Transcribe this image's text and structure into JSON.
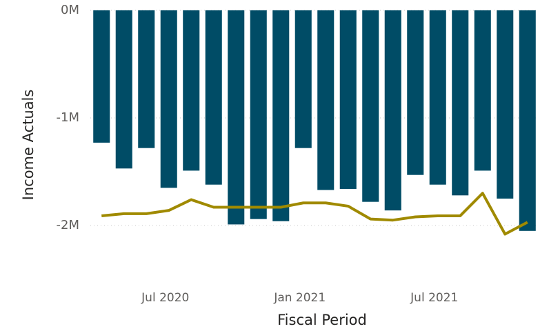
{
  "chart_data": {
    "type": "bar_line",
    "x_label": "Fiscal Period",
    "y_label": "Income Actuals",
    "categories": [
      null,
      null,
      null,
      "Jul 2020",
      null,
      null,
      null,
      null,
      null,
      "Jan 2021",
      null,
      null,
      null,
      null,
      null,
      "Jul 2021",
      null,
      null,
      null,
      null
    ],
    "series": [
      {
        "type": "bar",
        "color": "#004c66",
        "values": [
          -1230000,
          -1470000,
          -1280000,
          -1650000,
          -1490000,
          -1620000,
          -1990000,
          -1940000,
          -1960000,
          -1280000,
          -1670000,
          -1660000,
          -1780000,
          -1860000,
          -1530000,
          -1620000,
          -1720000,
          -1490000,
          -1750000,
          -2050000
        ]
      },
      {
        "type": "line",
        "color": "#a08a00",
        "values": [
          -1910000,
          -1890000,
          -1890000,
          -1860000,
          -1760000,
          -1830000,
          -1830000,
          -1830000,
          -1830000,
          -1790000,
          -1790000,
          -1820000,
          -1940000,
          -1950000,
          -1920000,
          -1910000,
          -1910000,
          -1700000,
          -2080000,
          -1970000
        ]
      }
    ],
    "ylim": [
      -2100000,
      0
    ],
    "yticks": [
      {
        "value": 0,
        "label": "0M"
      },
      {
        "value": -1000000,
        "label": "-1M"
      },
      {
        "value": -2000000,
        "label": "-2M"
      }
    ],
    "grid": true
  }
}
